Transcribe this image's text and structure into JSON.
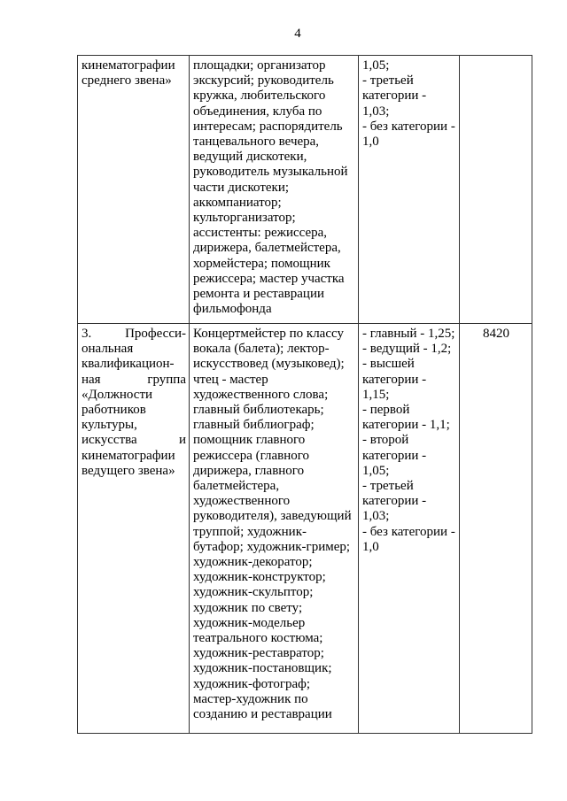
{
  "page_number": "4",
  "rows": [
    {
      "group": [
        "кинематографии",
        "среднего звена»"
      ],
      "positions": [
        "площадки; организатор",
        "экскурсий; руководитель",
        "кружка, любительского",
        "объединения, клуба по",
        "интересам; распорядитель",
        "танцевального вечера,",
        "ведущий дискотеки,",
        "руководитель музыкальной",
        "части дискотеки;",
        "аккомпаниатор;",
        "культорганизатор;",
        "ассистенты: режиссера,",
        "дирижера, балетмейстера,",
        "хормейстера; помощник",
        "режиссера; мастер участка",
        "ремонта и реставрации",
        "фильмофонда"
      ],
      "coefficients": [
        "1,05;",
        "- третьей",
        "категории -",
        "1,03;",
        "- без категории -",
        "1,0"
      ],
      "salary": ""
    },
    {
      "group": [
        "3.        Професси-",
        "ональная",
        "квалификацион-",
        "ная        группа",
        "«Должности",
        "работников",
        "культуры,",
        "искусства          и",
        "кинематографии",
        "ведущего звена»"
      ],
      "positions": [
        "Концертмейстер по классу",
        "вокала (балета); лектор-",
        "искусствовед (музыковед);",
        "чтец - мастер",
        "художественного слова;",
        "главный библиотекарь;",
        "главный библиограф;",
        "помощник главного",
        "режиссера (главного",
        "дирижера, главного",
        "балетмейстера,",
        "художественного",
        "руководителя), заведующий",
        "труппой; художник-",
        "бутафор; художник-гример;",
        "художник-декоратор;",
        "художник-конструктор;",
        "художник-скульптор;",
        "художник по свету;",
        "художник-модельер",
        "театрального костюма;",
        "художник-реставратор;",
        "художник-постановщик;",
        "художник-фотограф;",
        "мастер-художник по",
        "созданию и реставрации"
      ],
      "coefficients": [
        "- главный - 1,25;",
        "- ведущий - 1,2;",
        "- высшей",
        "категории -",
        "1,15;",
        "- первой",
        "категории - 1,1;",
        "- второй",
        "категории -",
        "1,05;",
        "- третьей",
        "категории -",
        "1,03;",
        "- без категории -",
        "1,0"
      ],
      "salary": "8420"
    }
  ]
}
